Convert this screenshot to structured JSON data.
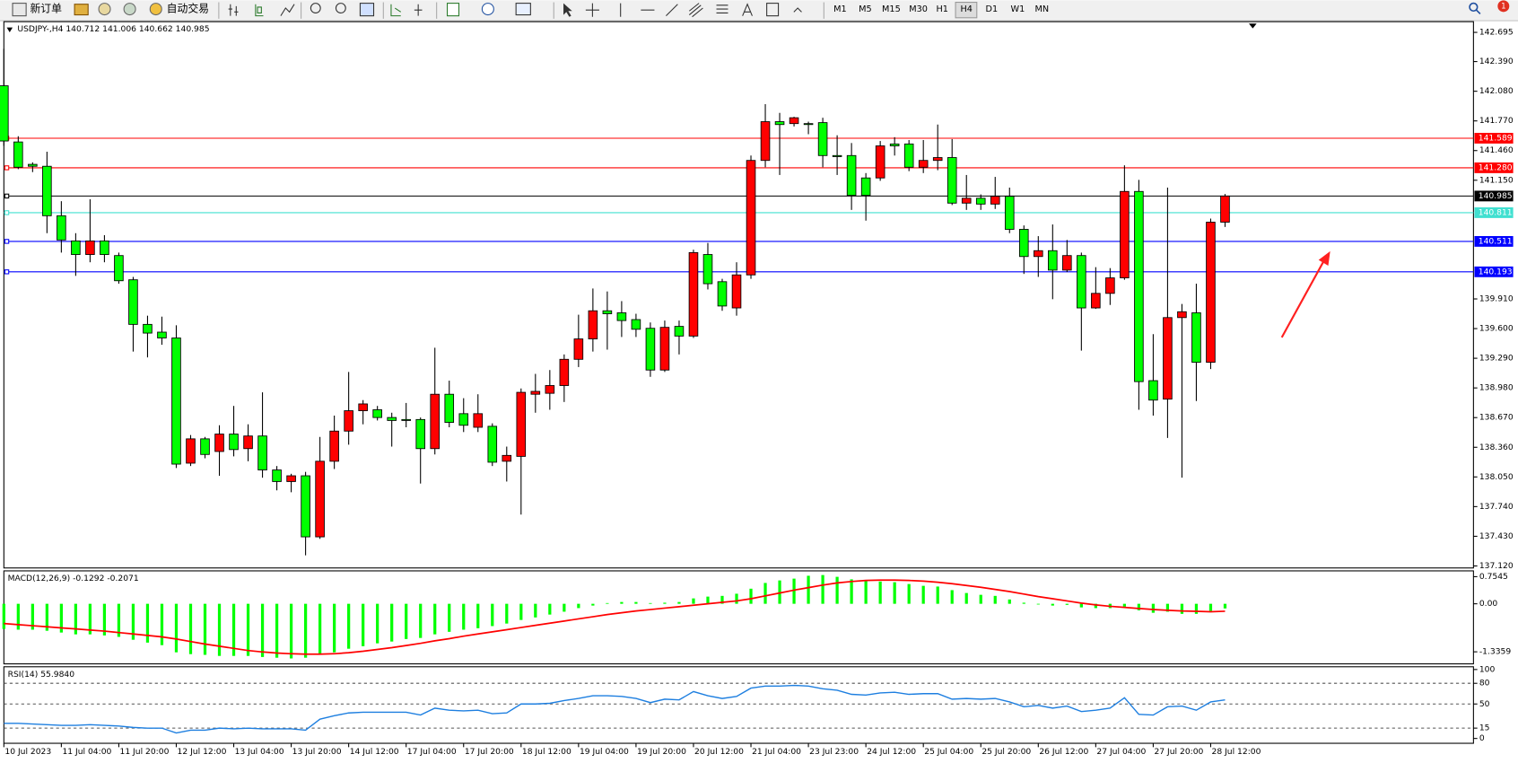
{
  "toolbar": {
    "new_order": "新订单",
    "auto_trade": "自动交易",
    "timeframes": [
      "M1",
      "M5",
      "M15",
      "M30",
      "H1",
      "H4",
      "D1",
      "W1",
      "MN"
    ],
    "notifications": "1"
  },
  "chart_data": [
    {
      "type": "candlestick",
      "title": "USDJPY-,H4  140.712 141.006 140.662 140.985",
      "categories": [
        "10 Jul 2023",
        null,
        null,
        null,
        "11 Jul 04:00",
        null,
        null,
        null,
        "11 Jul 20:00",
        null,
        null,
        null,
        "12 Jul 12:00",
        null,
        null,
        null,
        "13 Jul 04:00",
        null,
        null,
        null,
        "13 Jul 20:00",
        null,
        null,
        null,
        "14 Jul 12:00",
        null,
        null,
        null,
        "17 Jul 04:00",
        null,
        null,
        null,
        "17 Jul 20:00",
        null,
        null,
        null,
        "18 Jul 12:00",
        null,
        null,
        null,
        "19 Jul 04:00",
        null,
        null,
        null,
        "19 Jul 20:00",
        null,
        null,
        null,
        "20 Jul 12:00",
        null,
        null,
        null,
        "21 Jul 04:00",
        null,
        null,
        null,
        "23 Jul 23:00",
        null,
        null,
        null,
        "24 Jul 12:00",
        null,
        null,
        null,
        "25 Jul 04:00",
        null,
        null,
        null,
        "25 Jul 20:00",
        null,
        null,
        null,
        "26 Jul 12:00",
        null,
        null,
        null,
        "27 Jul 04:00",
        null,
        null,
        null,
        "27 Jul 20:00",
        null,
        null,
        null,
        "28 Jul 12:00",
        null
      ],
      "open": [
        142.137,
        141.55,
        141.316,
        141.296,
        140.779,
        140.516,
        140.374,
        140.516,
        140.363,
        140.11,
        139.644,
        139.563,
        139.502,
        138.194,
        138.448,
        138.316,
        138.498,
        138.346,
        138.478,
        138.123,
        138.002,
        138.062,
        137.424,
        138.214,
        138.529,
        138.742,
        138.752,
        138.671,
        138.65,
        138.65,
        138.346,
        138.914,
        138.711,
        138.569,
        138.579,
        138.214,
        138.265,
        138.914,
        138.924,
        139.005,
        139.279,
        139.492,
        139.786,
        139.765,
        139.694,
        139.603,
        139.167,
        139.623,
        139.522,
        140.374,
        140.09,
        139.816,
        140.161,
        141.357,
        141.762,
        141.742,
        141.742,
        141.752,
        141.408,
        141.408,
        141.174,
        141.174,
        141.529,
        141.529,
        141.286,
        141.357,
        141.387,
        140.911,
        140.962,
        140.901,
        140.982,
        140.637,
        140.353,
        140.414,
        140.211,
        140.363,
        139.816,
        139.968,
        140.13,
        141.033,
        139.056,
        138.863,
        139.715,
        139.765,
        139.248,
        140.712
      ],
      "high": [
        142.523,
        141.61,
        141.337,
        141.448,
        140.931,
        140.597,
        140.951,
        140.576,
        140.394,
        140.14,
        139.735,
        139.725,
        139.634,
        138.488,
        138.468,
        138.59,
        138.792,
        138.6,
        138.934,
        138.164,
        138.083,
        138.103,
        138.468,
        138.691,
        139.147,
        138.853,
        138.792,
        138.721,
        138.823,
        138.671,
        139.4,
        139.056,
        138.873,
        138.914,
        138.61,
        138.367,
        138.975,
        139.127,
        139.167,
        139.33,
        139.745,
        140.019,
        139.988,
        139.887,
        139.755,
        139.664,
        139.684,
        139.684,
        140.424,
        140.495,
        140.12,
        140.293,
        141.408,
        141.945,
        141.854,
        141.813,
        141.762,
        141.803,
        141.62,
        141.539,
        141.225,
        141.56,
        141.6,
        141.57,
        141.57,
        141.732,
        141.58,
        141.205,
        141.002,
        141.185,
        141.073,
        140.678,
        140.566,
        140.688,
        140.526,
        140.394,
        140.242,
        140.232,
        141.306,
        141.154,
        139.542,
        141.073,
        139.857,
        140.069,
        140.749,
        141.006
      ],
      "low": [
        141.509,
        141.266,
        141.235,
        140.597,
        140.394,
        140.151,
        140.293,
        140.293,
        140.069,
        139.36,
        139.299,
        139.431,
        138.143,
        138.164,
        138.245,
        138.062,
        138.265,
        138.214,
        138.042,
        137.91,
        137.89,
        137.231,
        137.403,
        138.133,
        138.387,
        138.6,
        138.64,
        138.367,
        138.569,
        137.981,
        138.285,
        138.569,
        138.519,
        138.519,
        138.164,
        138.002,
        137.657,
        138.721,
        138.752,
        138.833,
        139.198,
        139.36,
        139.38,
        139.512,
        139.512,
        139.096,
        139.147,
        139.33,
        139.502,
        140.009,
        139.786,
        139.735,
        140.12,
        141.286,
        141.205,
        141.712,
        141.631,
        141.286,
        141.205,
        140.84,
        140.728,
        141.144,
        141.408,
        141.245,
        141.225,
        141.255,
        140.891,
        140.84,
        140.84,
        140.85,
        140.597,
        140.171,
        140.14,
        139.907,
        140.191,
        139.37,
        139.806,
        139.847,
        140.11,
        138.752,
        138.691,
        138.458,
        138.042,
        138.843,
        139.177,
        140.662
      ],
      "close": [
        141.56,
        141.286,
        141.296,
        140.779,
        140.526,
        140.374,
        140.516,
        140.374,
        140.1,
        139.644,
        139.553,
        139.502,
        138.184,
        138.448,
        138.285,
        138.498,
        138.336,
        138.478,
        138.123,
        138.002,
        138.062,
        137.424,
        138.214,
        138.529,
        138.742,
        138.813,
        138.671,
        138.64,
        138.64,
        138.346,
        138.914,
        138.62,
        138.59,
        138.711,
        138.204,
        138.275,
        138.934,
        138.944,
        139.005,
        139.279,
        139.492,
        139.786,
        139.755,
        139.684,
        139.593,
        139.167,
        139.613,
        139.522,
        140.394,
        140.069,
        139.836,
        140.161,
        141.357,
        141.762,
        141.732,
        141.803,
        141.732,
        141.408,
        141.397,
        140.992,
        140.992,
        141.509,
        141.509,
        141.286,
        141.357,
        141.387,
        140.911,
        140.962,
        140.901,
        140.982,
        140.637,
        140.353,
        140.414,
        140.211,
        140.363,
        139.816,
        139.968,
        140.13,
        141.033,
        139.046,
        138.853,
        139.715,
        139.776,
        139.248,
        140.712,
        140.985
      ],
      "up_color": "#ff0000",
      "down_color": "#00ff00",
      "ylim": [
        137.099,
        142.807
      ],
      "yticks": [
        142.695,
        {
          "value": 142.39,
          "label": "142.390"
        },
        {
          "value": 142.08,
          "label": "142.080"
        },
        {
          "value": 141.77,
          "label": "141.770"
        },
        {
          "value": 141.46,
          "label": "141.460"
        },
        {
          "value": 141.15,
          "label": "141.150"
        },
        {
          "value": 139.91,
          "label": "139.910"
        },
        {
          "value": 139.6,
          "label": "139.600"
        },
        {
          "value": 139.29,
          "label": "139.290"
        },
        {
          "value": 138.98,
          "label": "138.980"
        },
        {
          "value": 138.67,
          "label": "138.670"
        },
        {
          "value": 138.36,
          "label": "138.360"
        },
        {
          "value": 138.05,
          "label": "138.050"
        },
        {
          "value": 137.74,
          "label": "137.740"
        },
        {
          "value": 137.43,
          "label": "137.430"
        },
        {
          "value": 137.12,
          "label": "137.120"
        }
      ],
      "hlines": [
        {
          "value": 141.589,
          "label": "141.589",
          "color": "#ff0000"
        },
        {
          "value": 141.28,
          "label": "141.280",
          "color": "#ff0000"
        },
        {
          "value": 140.985,
          "label": "140.985",
          "color": "#000000"
        },
        {
          "value": 140.811,
          "label": "140.811",
          "color": "#40e0d0"
        },
        {
          "value": 140.511,
          "label": "140.511",
          "color": "#0000ff"
        },
        {
          "value": 140.193,
          "label": "140.193",
          "color": "#0000ff"
        }
      ]
    },
    {
      "type": "macd",
      "title": "MACD(12,26,9) -0.1292 -0.2071",
      "histogram": {
        "color": "#00ff00",
        "values": [
          -0.7,
          -0.72,
          -0.72,
          -0.75,
          -0.8,
          -0.85,
          -0.85,
          -0.88,
          -0.92,
          -1.0,
          -1.08,
          -1.15,
          -1.35,
          -1.4,
          -1.42,
          -1.45,
          -1.45,
          -1.45,
          -1.48,
          -1.5,
          -1.52,
          -1.5,
          -1.42,
          -1.35,
          -1.25,
          -1.18,
          -1.1,
          -1.05,
          -0.98,
          -0.95,
          -0.85,
          -0.78,
          -0.72,
          -0.68,
          -0.62,
          -0.55,
          -0.45,
          -0.38,
          -0.3,
          -0.22,
          -0.12,
          -0.05,
          0.02,
          0.05,
          0.05,
          0.02,
          0.03,
          0.05,
          0.15,
          0.2,
          0.22,
          0.28,
          0.42,
          0.58,
          0.65,
          0.7,
          0.78,
          0.8,
          0.75,
          0.68,
          0.65,
          0.62,
          0.6,
          0.55,
          0.5,
          0.48,
          0.38,
          0.3,
          0.25,
          0.22,
          0.12,
          0.03,
          -0.02,
          -0.05,
          -0.03,
          -0.1,
          -0.12,
          -0.12,
          -0.08,
          -0.18,
          -0.25,
          -0.22,
          -0.28,
          -0.28,
          -0.2,
          -0.1292
        ]
      },
      "signal": {
        "color": "#ff0000",
        "values": [
          -0.55,
          -0.58,
          -0.61,
          -0.64,
          -0.67,
          -0.7,
          -0.73,
          -0.76,
          -0.8,
          -0.84,
          -0.88,
          -0.92,
          -0.98,
          -1.05,
          -1.12,
          -1.18,
          -1.24,
          -1.3,
          -1.34,
          -1.37,
          -1.39,
          -1.4,
          -1.4,
          -1.39,
          -1.36,
          -1.32,
          -1.27,
          -1.22,
          -1.16,
          -1.1,
          -1.03,
          -0.97,
          -0.9,
          -0.84,
          -0.78,
          -0.72,
          -0.66,
          -0.6,
          -0.54,
          -0.48,
          -0.42,
          -0.36,
          -0.3,
          -0.25,
          -0.2,
          -0.16,
          -0.12,
          -0.08,
          -0.04,
          0.0,
          0.04,
          0.08,
          0.14,
          0.22,
          0.3,
          0.38,
          0.45,
          0.52,
          0.58,
          0.62,
          0.65,
          0.66,
          0.66,
          0.65,
          0.63,
          0.6,
          0.56,
          0.51,
          0.46,
          0.4,
          0.34,
          0.27,
          0.2,
          0.14,
          0.08,
          0.02,
          -0.03,
          -0.07,
          -0.1,
          -0.13,
          -0.16,
          -0.18,
          -0.2,
          -0.21,
          -0.22,
          -0.2071
        ]
      },
      "ylim": [
        -1.671,
        0.916
      ],
      "yticks": [
        0.7545,
        {
          "value": 0,
          "label": "0.00"
        },
        -1.3359
      ]
    },
    {
      "type": "line",
      "title": "RSI(14) 55.9840",
      "color": "#1e7fe0",
      "values": [
        22,
        22,
        21,
        20,
        19,
        19,
        20,
        19,
        18,
        16,
        15,
        15,
        8,
        12,
        12,
        15,
        14,
        15,
        14,
        14,
        14,
        12,
        28,
        33,
        37,
        38,
        38,
        38,
        38,
        34,
        44,
        41,
        40,
        41,
        36,
        37,
        50,
        50,
        51,
        55,
        58,
        62,
        62,
        61,
        58,
        52,
        57,
        56,
        68,
        62,
        58,
        61,
        73,
        76,
        76,
        77,
        76,
        72,
        70,
        64,
        63,
        66,
        67,
        64,
        65,
        65,
        57,
        58,
        57,
        58,
        53,
        46,
        48,
        44,
        47,
        39,
        41,
        44,
        59,
        35,
        34,
        46,
        47,
        41,
        53,
        55.984
      ],
      "ylim": [
        -7,
        104
      ],
      "yticks": [
        100,
        80,
        50,
        15,
        0
      ],
      "levels": [
        80,
        50,
        15
      ],
      "level_color": "#555555"
    }
  ]
}
